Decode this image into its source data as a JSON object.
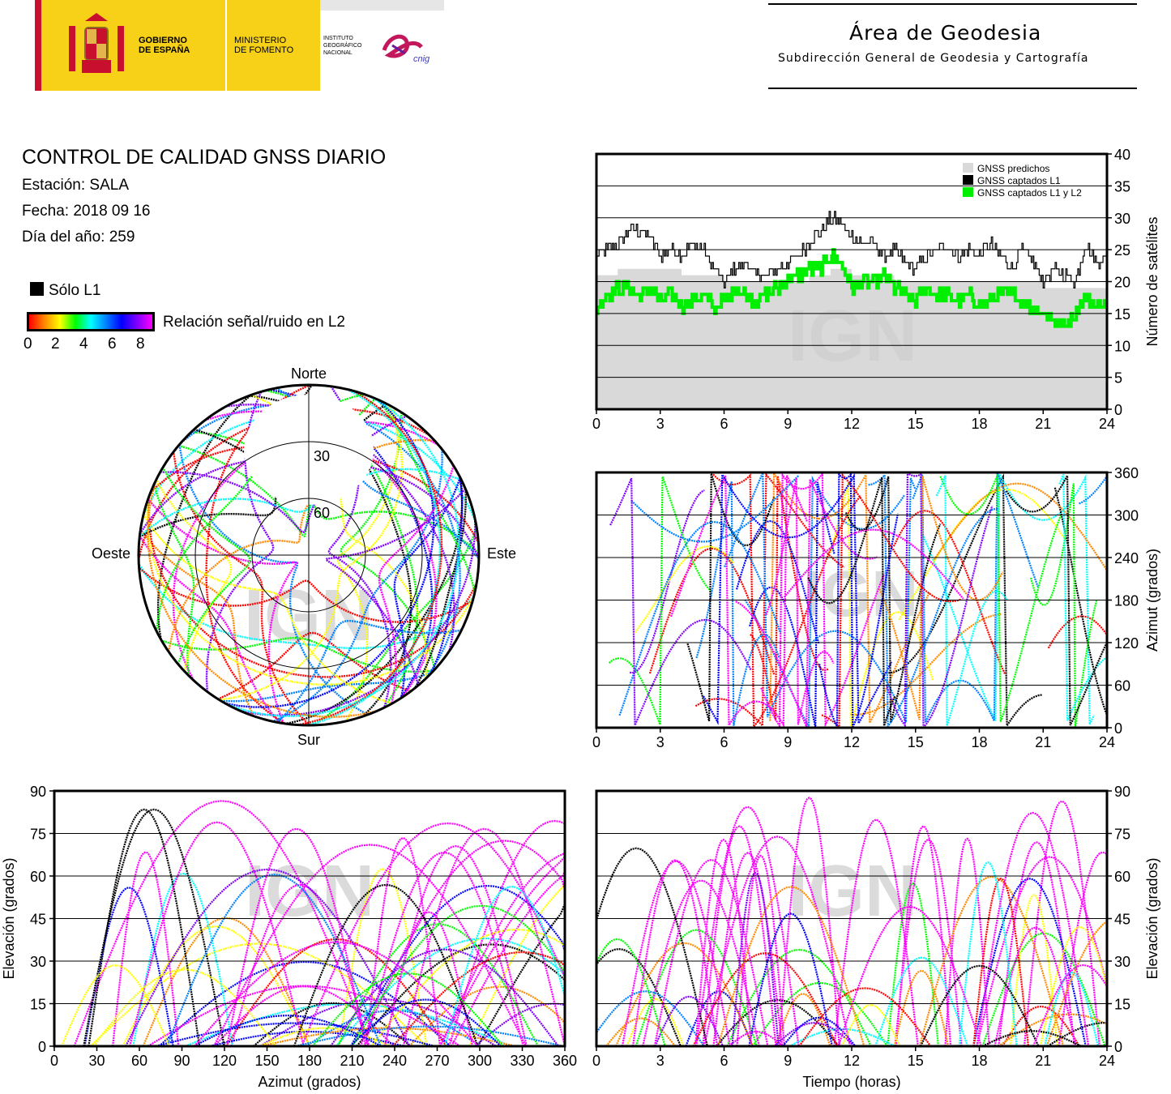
{
  "header": {
    "gobierno": [
      "GOBIERNO",
      "DE ESPAÑA"
    ],
    "ministerio": [
      "MINISTERIO",
      "DE FOMENTO"
    ],
    "instituto": [
      "INSTITUTO",
      "GEOGRÁFICO",
      "NACIONAL"
    ],
    "cnig": "cnig",
    "area_title": "Área de Geodesia",
    "area_subtitle": "Subdirección General de Geodesia y Cartografía"
  },
  "info": {
    "title": "CONTROL DE CALIDAD GNSS DIARIO",
    "station": "Estación: SALA",
    "date": "Fecha: 2018 09 16",
    "doy": "Día del año: 259"
  },
  "legend": {
    "l1_only": "Sólo L1",
    "snr_label": "Relación señal/ruido en L2",
    "snr_ticks": [
      "0",
      "2",
      "4",
      "6",
      "8"
    ],
    "snr_colors": [
      "#ff0000",
      "#ff8800",
      "#ffff00",
      "#00ff00",
      "#00ffff",
      "#0080ff",
      "#0000ff",
      "#8000ff",
      "#ff00ff"
    ]
  },
  "watermark": "IGN",
  "chart_data": [
    {
      "type": "line",
      "name": "satellite-count",
      "ylabel": "Número de satélites",
      "xlim": [
        0,
        24
      ],
      "ylim": [
        0,
        40
      ],
      "xticks": [
        0,
        3,
        6,
        9,
        12,
        15,
        18,
        21,
        24
      ],
      "yticks": [
        0,
        5,
        10,
        15,
        20,
        25,
        30,
        35,
        40
      ],
      "grid": true,
      "legend_position": "top-right",
      "colors": {
        "predicted": "#d9d9d9",
        "l1": "#000000",
        "l1l2": "#00ee00"
      },
      "series": [
        {
          "name": "GNSS predichos",
          "x": [
            0,
            1,
            2,
            3,
            4,
            5,
            6,
            7,
            8,
            9,
            10,
            11,
            12,
            13,
            14,
            15,
            16,
            17,
            18,
            19,
            20,
            21,
            22,
            23,
            24
          ],
          "values": [
            21,
            22,
            22,
            22,
            21,
            21,
            20,
            20,
            20,
            20,
            21,
            22,
            21,
            21,
            20,
            20,
            20,
            20,
            20,
            20,
            20,
            19,
            19,
            19,
            20
          ]
        },
        {
          "name": "GNSS captados L1",
          "x": [
            0,
            0.5,
            1,
            1.5,
            2,
            2.5,
            3,
            3.5,
            4,
            4.5,
            5,
            5.5,
            6,
            6.5,
            7,
            7.5,
            8,
            8.5,
            9,
            9.5,
            10,
            10.5,
            11,
            11.5,
            12,
            12.5,
            13,
            13.5,
            14,
            14.5,
            15,
            15.5,
            16,
            16.5,
            17,
            17.5,
            18,
            18.5,
            19,
            19.5,
            20,
            20.5,
            21,
            21.5,
            22,
            22.5,
            23,
            23.5,
            24
          ],
          "values": [
            24,
            25,
            26,
            28,
            28,
            27,
            24,
            25,
            24,
            26,
            25,
            22,
            20,
            22,
            23,
            21,
            21,
            22,
            23,
            24,
            26,
            28,
            30,
            29,
            27,
            26,
            26,
            24,
            25,
            23,
            22,
            24,
            25,
            26,
            24,
            25,
            24,
            26,
            24,
            22,
            25,
            23,
            20,
            22,
            21,
            20,
            26,
            23,
            24
          ]
        },
        {
          "name": "GNSS captados L1 y L2",
          "x": [
            0,
            0.5,
            1,
            1.5,
            2,
            2.5,
            3,
            3.5,
            4,
            4.5,
            5,
            5.5,
            6,
            6.5,
            7,
            7.5,
            8,
            8.5,
            9,
            9.5,
            10,
            10.5,
            11,
            11.5,
            12,
            12.5,
            13,
            13.5,
            14,
            14.5,
            15,
            15.5,
            16,
            16.5,
            17,
            17.5,
            18,
            18.5,
            19,
            19.5,
            20,
            20.5,
            21,
            21.5,
            22,
            22.5,
            23,
            23.5,
            24
          ],
          "values": [
            16,
            18,
            19,
            19,
            18,
            19,
            17,
            18,
            16,
            17,
            18,
            16,
            17,
            19,
            18,
            17,
            18,
            19,
            20,
            21,
            22,
            22,
            24,
            23,
            19,
            20,
            20,
            21,
            19,
            18,
            17,
            19,
            18,
            18,
            17,
            18,
            16,
            17,
            18,
            18,
            17,
            16,
            15,
            14,
            13,
            15,
            18,
            16,
            17
          ]
        }
      ]
    },
    {
      "type": "scatter",
      "name": "azimuth-vs-time",
      "ylabel": "Azimut (grados)",
      "xlim": [
        0,
        24
      ],
      "ylim": [
        0,
        360
      ],
      "xticks": [
        0,
        3,
        6,
        9,
        12,
        15,
        18,
        21,
        24
      ],
      "yticks": [
        0,
        60,
        120,
        180,
        240,
        300,
        360
      ],
      "grid": true
    },
    {
      "type": "scatter",
      "name": "skyplot",
      "labels": {
        "north": "Norte",
        "south": "Sur",
        "east": "Este",
        "west": "Oeste"
      },
      "rings": [
        "30",
        "60"
      ]
    },
    {
      "type": "scatter",
      "name": "elevation-vs-azimuth",
      "xlabel": "Azimut (grados)",
      "ylabel": "Elevación (grados)",
      "xlim": [
        0,
        360
      ],
      "ylim": [
        0,
        90
      ],
      "xticks": [
        0,
        30,
        60,
        90,
        120,
        150,
        180,
        210,
        240,
        270,
        300,
        330,
        360
      ],
      "yticks": [
        0,
        15,
        30,
        45,
        60,
        75,
        90
      ],
      "grid": true
    },
    {
      "type": "scatter",
      "name": "elevation-vs-time",
      "xlabel": "Tiempo (horas)",
      "ylabel": "Elevación (grados)",
      "xlim": [
        0,
        24
      ],
      "ylim": [
        0,
        90
      ],
      "xticks": [
        0,
        3,
        6,
        9,
        12,
        15,
        18,
        21,
        24
      ],
      "yticks": [
        0,
        15,
        30,
        45,
        60,
        75,
        90
      ],
      "grid": true
    }
  ]
}
